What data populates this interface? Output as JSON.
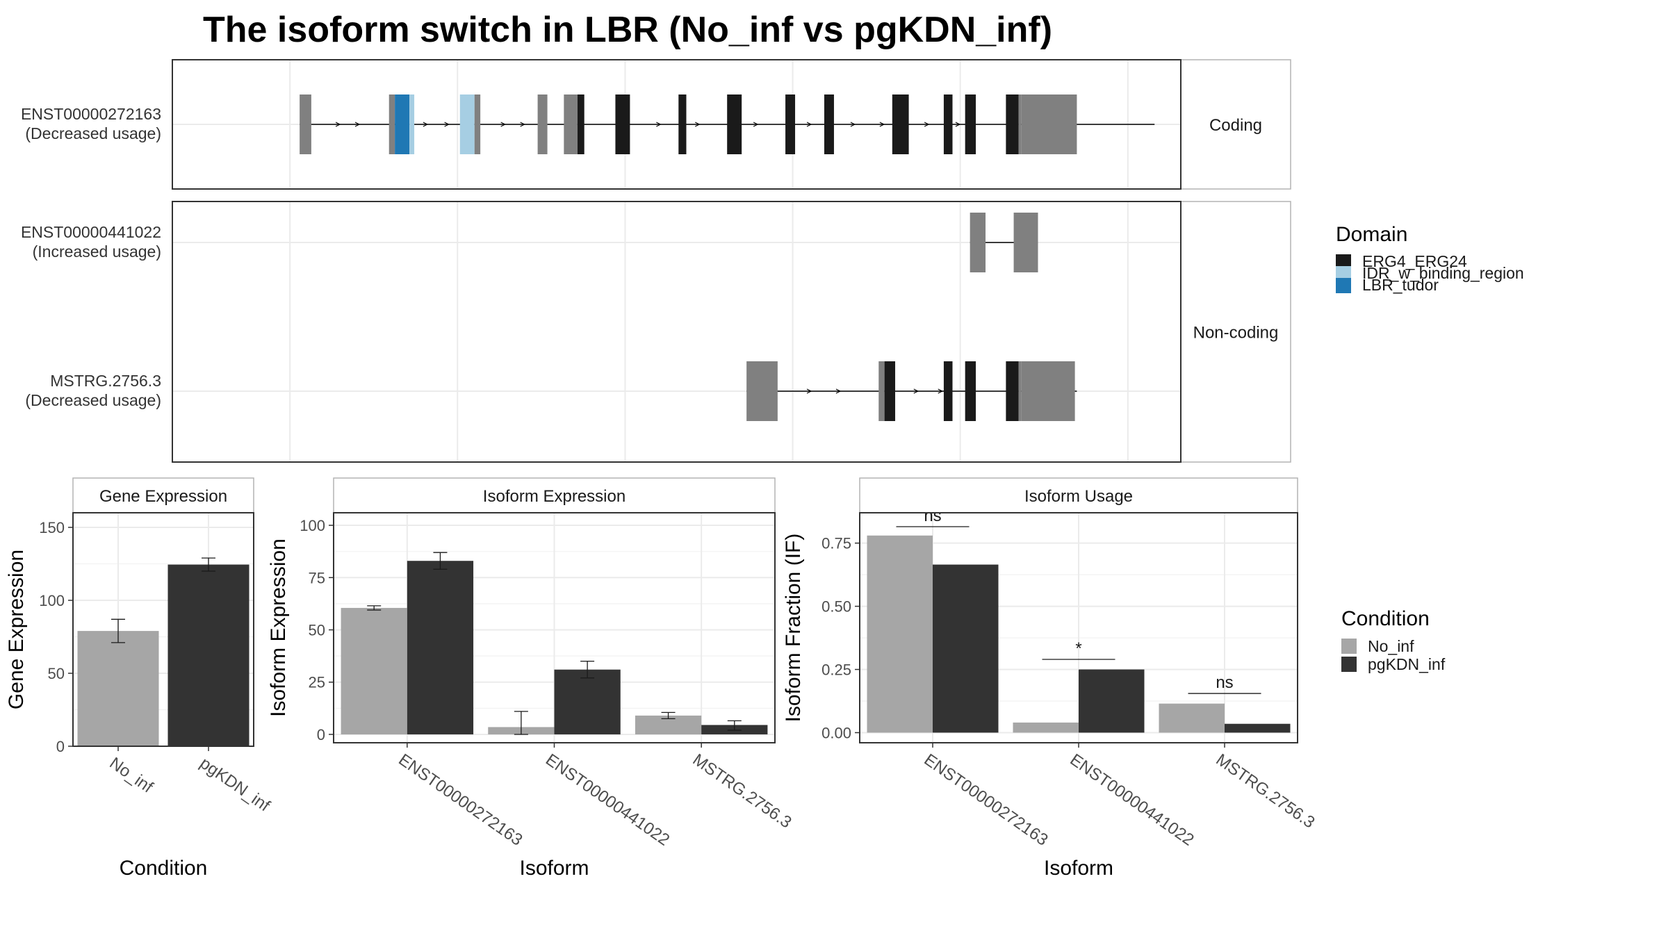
{
  "title": "The isoform switch in LBR (No_inf vs pgKDN_inf)",
  "colors": {
    "ERG4_ERG24": "#1a1a1a",
    "IDR_w_binding_region": "#a6cee3",
    "LBR_tudor": "#1f78b4",
    "utr": "#808080",
    "No_inf": "#a6a6a6",
    "pgKDN_inf": "#333333"
  },
  "structure": {
    "facets": [
      {
        "label": "Coding",
        "rows": [
          "ENST00000272163"
        ]
      },
      {
        "label": "Non-coding",
        "rows": [
          "ENST00000441022",
          "MSTRG.2756.3"
        ]
      }
    ],
    "transcripts": [
      {
        "id": "ENST00000272163",
        "label_line1": "ENST00000272163",
        "label_line2": "(Decreased usage)",
        "span": [
          1,
          89
        ],
        "exons": [
          {
            "s": 1,
            "e": 2.2,
            "dom": "utr"
          },
          {
            "s": 10.2,
            "e": 10.8,
            "dom": "utr"
          },
          {
            "s": 10.8,
            "e": 12.3,
            "dom": "LBR_tudor"
          },
          {
            "s": 12.3,
            "e": 12.8,
            "dom": "IDR_w_binding_region"
          },
          {
            "s": 17.5,
            "e": 19,
            "dom": "IDR_w_binding_region"
          },
          {
            "s": 19,
            "e": 19.6,
            "dom": "utr"
          },
          {
            "s": 25.5,
            "e": 26.5,
            "dom": "utr"
          },
          {
            "s": 28.2,
            "e": 29.6,
            "dom": "utr"
          },
          {
            "s": 29.6,
            "e": 30.3,
            "dom": "ERG4_ERG24"
          },
          {
            "s": 33.5,
            "e": 35,
            "dom": "ERG4_ERG24"
          },
          {
            "s": 40,
            "e": 40.8,
            "dom": "ERG4_ERG24"
          },
          {
            "s": 45,
            "e": 46.5,
            "dom": "ERG4_ERG24"
          },
          {
            "s": 51,
            "e": 52,
            "dom": "ERG4_ERG24"
          },
          {
            "s": 55,
            "e": 56,
            "dom": "ERG4_ERG24"
          },
          {
            "s": 62,
            "e": 63.7,
            "dom": "ERG4_ERG24"
          },
          {
            "s": 67.3,
            "e": 68.2,
            "dom": "ERG4_ERG24"
          },
          {
            "s": 69.5,
            "e": 70.6,
            "dom": "ERG4_ERG24"
          },
          {
            "s": 73.7,
            "e": 75,
            "dom": "ERG4_ERG24"
          },
          {
            "s": 75,
            "e": 75.3,
            "dom": "utr"
          },
          {
            "s": 75.3,
            "e": 81,
            "dom": "utr"
          }
        ],
        "arrows": [
          5,
          7,
          14,
          16.2,
          22,
          24,
          38,
          42,
          48,
          53.5,
          58,
          61,
          65.6,
          68.8
        ]
      },
      {
        "id": "ENST00000441022",
        "label_line1": "ENST00000441022",
        "label_line2": "(Increased usage)",
        "span": [
          70,
          77
        ],
        "exons": [
          {
            "s": 70,
            "e": 71.6,
            "dom": "utr"
          },
          {
            "s": 74.5,
            "e": 77,
            "dom": "utr"
          }
        ],
        "arrows": []
      },
      {
        "id": "MSTRG.2756.3",
        "label_line1": "MSTRG.2756.3",
        "label_line2": "(Decreased usage)",
        "span": [
          47,
          81
        ],
        "exons": [
          {
            "s": 47,
            "e": 50.2,
            "dom": "utr"
          },
          {
            "s": 60.6,
            "e": 61.2,
            "dom": "utr"
          },
          {
            "s": 61.2,
            "e": 62.3,
            "dom": "ERG4_ERG24"
          },
          {
            "s": 67.3,
            "e": 68.2,
            "dom": "ERG4_ERG24"
          },
          {
            "s": 69.5,
            "e": 70.6,
            "dom": "ERG4_ERG24"
          },
          {
            "s": 73.7,
            "e": 75,
            "dom": "ERG4_ERG24"
          },
          {
            "s": 75,
            "e": 75.3,
            "dom": "utr"
          },
          {
            "s": 75.3,
            "e": 80.8,
            "dom": "utr"
          }
        ],
        "arrows": [
          53.5,
          56.5,
          64.5,
          67
        ]
      }
    ]
  },
  "legend_domain": {
    "title": "Domain",
    "items": [
      {
        "label": "ERG4_ERG24",
        "key": "ERG4_ERG24"
      },
      {
        "label": "IDR_w_binding_region",
        "key": "IDR_w_binding_region"
      },
      {
        "label": "LBR_tudor",
        "key": "LBR_tudor"
      }
    ]
  },
  "legend_condition": {
    "title": "Condition",
    "items": [
      {
        "label": "No_inf",
        "key": "No_inf"
      },
      {
        "label": "pgKDN_inf",
        "key": "pgKDN_inf"
      }
    ]
  },
  "chart_data": [
    {
      "type": "bar",
      "panel_title": "Gene Expression",
      "xlabel": "Condition",
      "ylabel": "Gene Expression",
      "ylim": [
        0,
        160
      ],
      "yticks": [
        0,
        50,
        100,
        150
      ],
      "categories": [
        "No_inf",
        "pgKDN_inf"
      ],
      "values": [
        79,
        124.5
      ],
      "err_low": [
        71,
        120
      ],
      "err_high": [
        87,
        129
      ]
    },
    {
      "type": "bar",
      "panel_title": "Isoform Expression",
      "xlabel": "Isoform",
      "ylabel": "Isoform Expression",
      "ylim": [
        -4,
        106
      ],
      "yticks": [
        0,
        25,
        50,
        75,
        100
      ],
      "categories": [
        "ENST00000272163",
        "ENST00000441022",
        "MSTRG.2756.3"
      ],
      "series": [
        {
          "name": "No_inf",
          "values": [
            60.5,
            3.5,
            9
          ],
          "err_low": [
            59.5,
            0,
            7.5
          ],
          "err_high": [
            61.5,
            11,
            10.5
          ]
        },
        {
          "name": "pgKDN_inf",
          "values": [
            83,
            31,
            4.5
          ],
          "err_low": [
            79,
            27,
            2
          ],
          "err_high": [
            87,
            35,
            6.5
          ]
        }
      ]
    },
    {
      "type": "bar",
      "panel_title": "Isoform Usage",
      "xlabel": "Isoform",
      "ylabel": "Isoform Fraction (IF)",
      "ylim": [
        -0.04,
        0.87
      ],
      "yticks": [
        0,
        0.25,
        0.5,
        0.75
      ],
      "ytick_labels": [
        "0.00",
        "0.25",
        "0.50",
        "0.75"
      ],
      "categories": [
        "ENST00000272163",
        "ENST00000441022",
        "MSTRG.2756.3"
      ],
      "series": [
        {
          "name": "No_inf",
          "values": [
            0.78,
            0.04,
            0.115
          ]
        },
        {
          "name": "pgKDN_inf",
          "values": [
            0.665,
            0.25,
            0.035
          ]
        }
      ],
      "significance": [
        {
          "label": "ns",
          "level": 0.815
        },
        {
          "label": "*",
          "level": 0.29
        },
        {
          "label": "ns",
          "level": 0.155
        }
      ]
    }
  ]
}
